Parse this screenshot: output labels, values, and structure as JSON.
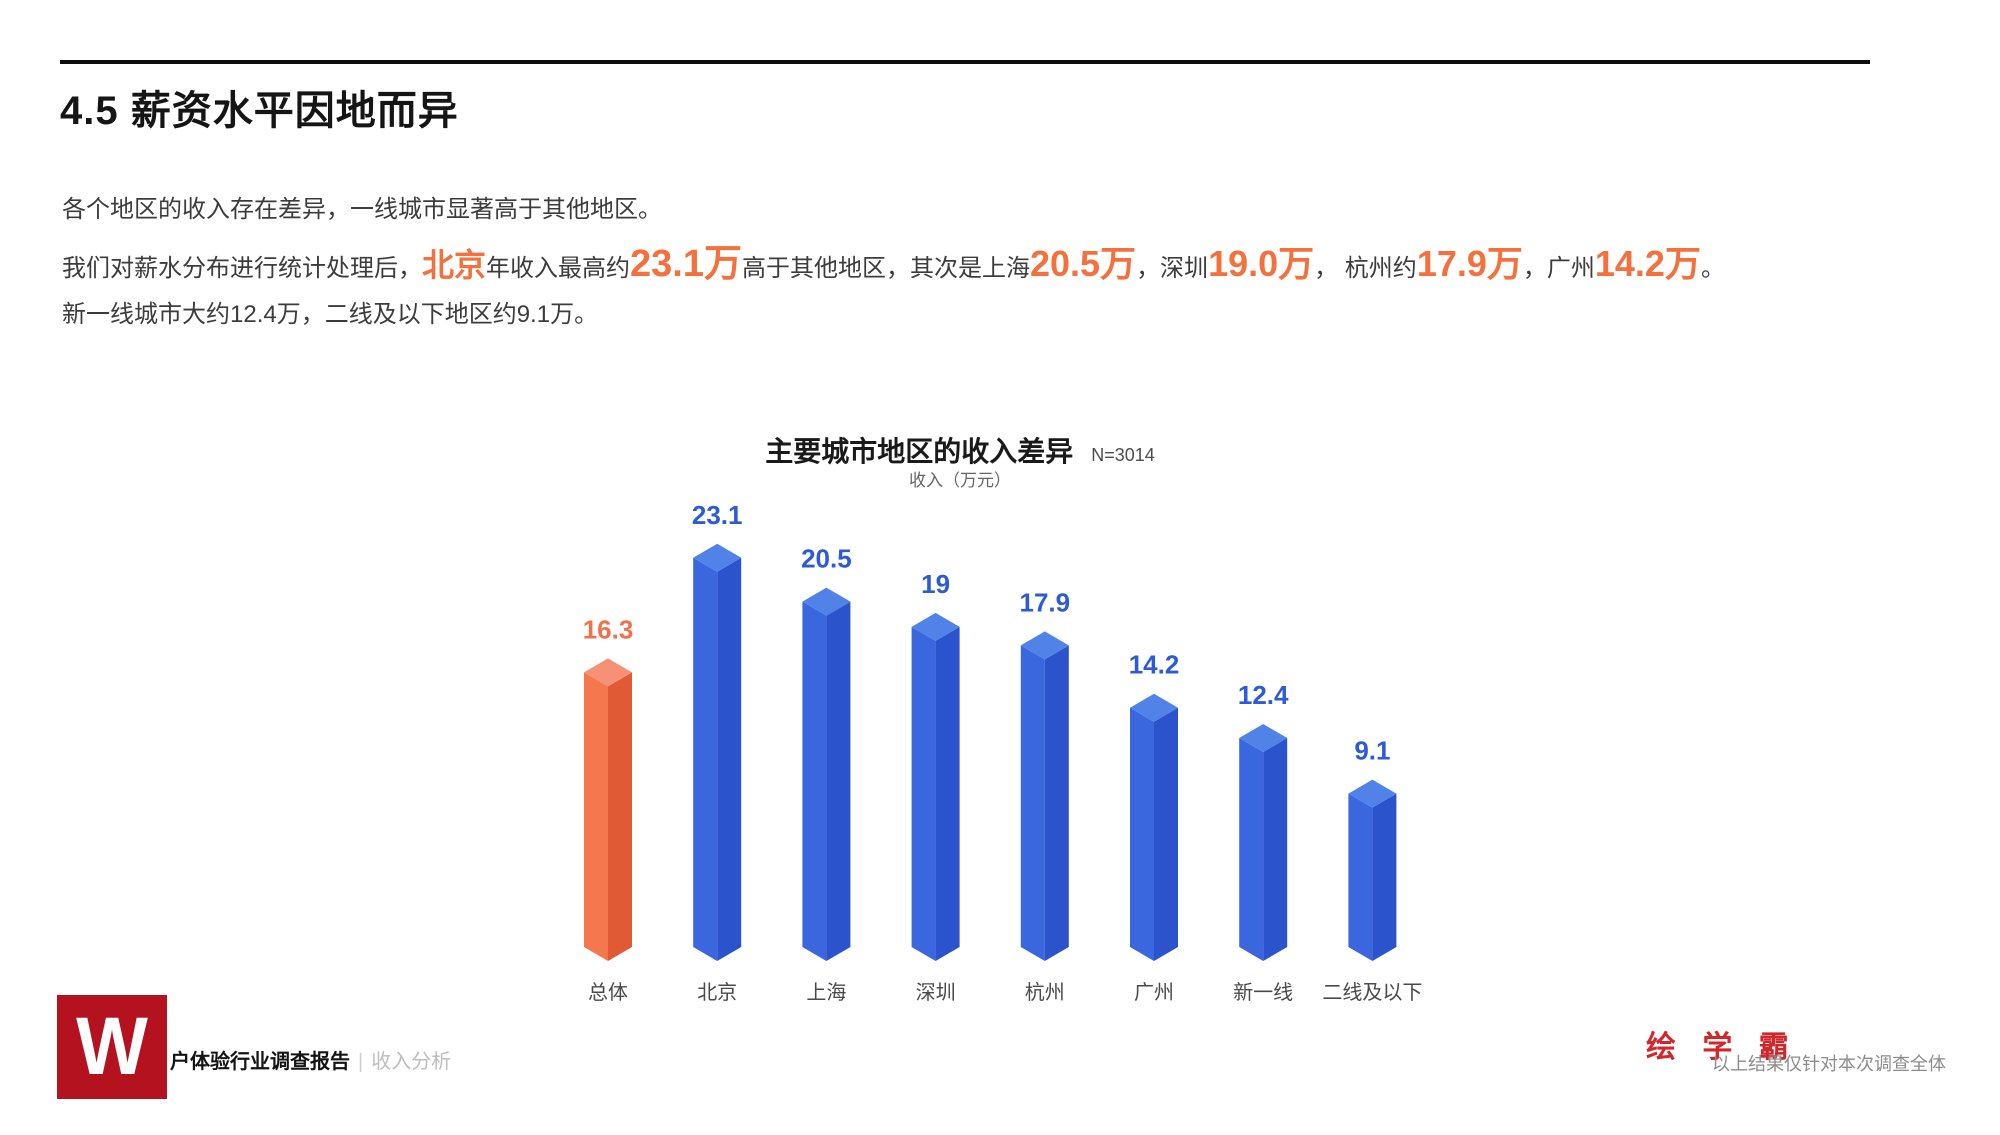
{
  "header": {
    "title": "4.5 薪资水平因地而异"
  },
  "intro": {
    "line1": "各个地区的收入存在差异，一线城市显著高于其他地区。",
    "line2": {
      "seg1": "我们对薪水分布进行统计处理后，",
      "beijing": "北京",
      "seg2": "年收入最高约",
      "v_beijing": "23.1万",
      "seg3": "高于其他地区，其次是上海",
      "v_shanghai": "20.5万",
      "seg4": "，深圳",
      "v_shenzhen": "19.0万",
      "seg5": "， 杭州约",
      "v_hangzhou": "17.9万",
      "seg6": "，广州",
      "v_guangzhou": "14.2万",
      "seg7": "。"
    },
    "line3": "新一线城市大约12.4万，二线及以下地区约9.1万。"
  },
  "chart": {
    "title": "主要城市地区的收入差异",
    "sample_label": "N=3014",
    "unit_label": "收入（万元）"
  },
  "chart_data": {
    "type": "bar",
    "title": "主要城市地区的收入差异",
    "subtitle": "收入（万元）",
    "sample_size": "N=3014",
    "categories": [
      "总体",
      "北京",
      "上海",
      "深圳",
      "杭州",
      "广州",
      "新一线",
      "二线及以下"
    ],
    "values": [
      16.3,
      23.1,
      20.5,
      19,
      17.9,
      14.2,
      12.4,
      9.1
    ],
    "value_labels": [
      "16.3",
      "23.1",
      "20.5",
      "19",
      "17.9",
      "14.2",
      "12.4",
      "9.1"
    ],
    "xlabel": "",
    "ylabel": "收入（万元）",
    "ylim": [
      0,
      25
    ],
    "grid": false,
    "legend_position": "none",
    "highlight_index": 0,
    "colors": {
      "highlight_faces": {
        "left": "#F5774E",
        "right": "#E05A35",
        "top": "#F69176"
      },
      "default_faces": {
        "left": "#3A67DE",
        "right": "#2B53CC",
        "top": "#5082E8"
      },
      "highlight_label": "#F0714B",
      "default_label": "#2B5BD6",
      "category_label": "#4A4A4A"
    }
  },
  "footer": {
    "logo_letter": "W",
    "report_label": "户体验行业调查报告",
    "divider": "|",
    "section_label": "收入分析",
    "brand": "绘 学 霸",
    "disclaimer": "以上结果仅针对本次调查全体"
  }
}
